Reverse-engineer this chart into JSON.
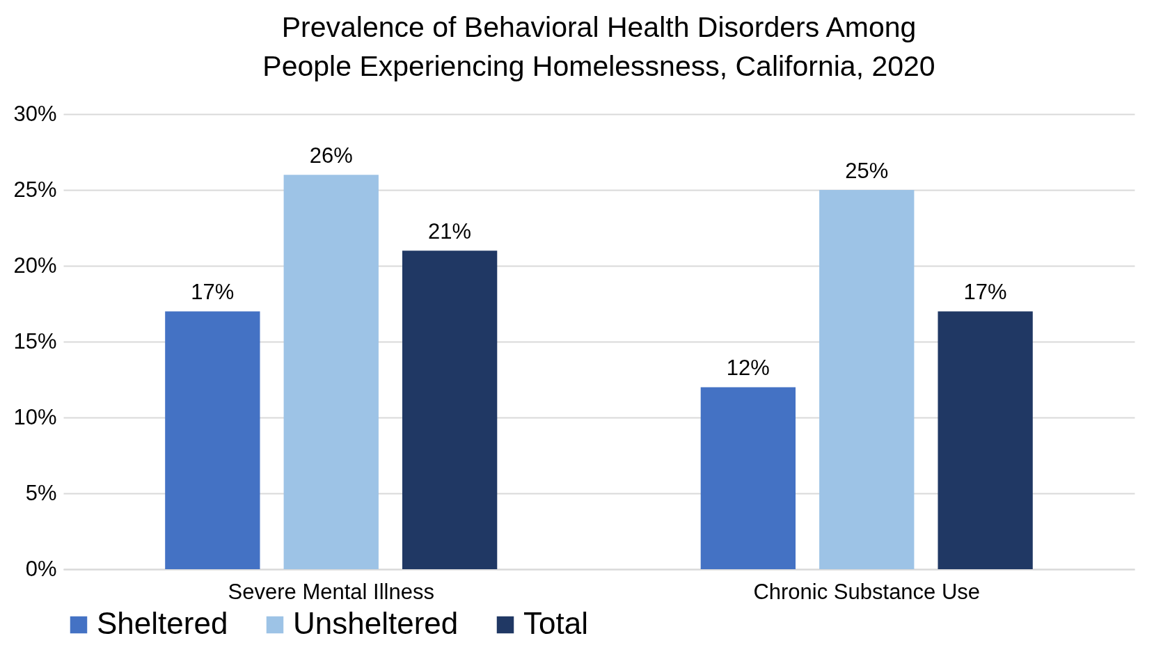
{
  "chart_data": {
    "type": "bar",
    "title": "Prevalence of Behavioral Health Disorders Among People Experiencing Homelessness, California, 2020",
    "categories": [
      "Severe Mental Illness",
      "Chronic Substance Use"
    ],
    "series": [
      {
        "name": "Sheltered",
        "color": "#4472c4",
        "values": [
          17,
          12
        ],
        "value_labels": [
          "17%",
          "12%"
        ]
      },
      {
        "name": "Unsheltered",
        "color": "#9dc3e6",
        "values": [
          26,
          25
        ],
        "value_labels": [
          "26%",
          "25%"
        ]
      },
      {
        "name": "Total",
        "color": "#203864",
        "values": [
          21,
          17
        ],
        "value_labels": [
          "21%",
          "17%"
        ]
      }
    ],
    "ylim": [
      0,
      30
    ],
    "yticks": [
      {
        "value": 0,
        "label": "0%"
      },
      {
        "value": 5,
        "label": "5%"
      },
      {
        "value": 10,
        "label": "10%"
      },
      {
        "value": 15,
        "label": "15%"
      },
      {
        "value": 20,
        "label": "20%"
      },
      {
        "value": 25,
        "label": "25%"
      },
      {
        "value": 30,
        "label": "30%"
      }
    ],
    "grid": "y",
    "legend": "bottom"
  }
}
